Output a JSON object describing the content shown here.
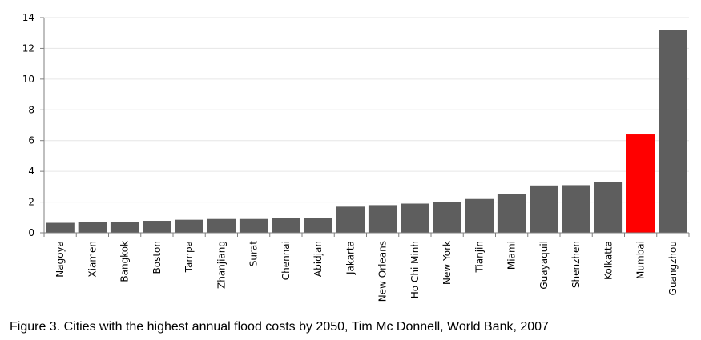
{
  "figure": {
    "caption": "Figure 3. Cities with the highest annual flood costs by 2050, Tim Mc Donnell, World Bank, 2007"
  },
  "chart_data": {
    "type": "bar",
    "title": "",
    "xlabel": "",
    "ylabel": "",
    "ylim": [
      0,
      14
    ],
    "yticks": [
      0,
      2,
      4,
      6,
      8,
      10,
      12,
      14
    ],
    "grid": true,
    "categories": [
      "Nagoya",
      "Xiamen",
      "Bangkok",
      "Boston",
      "Tampa",
      "Zhanjiang",
      "Surat",
      "Chennai",
      "Abidjan",
      "Jakarta",
      "New Orleans",
      "Ho Chi Minh",
      "New York",
      "Tianjin",
      "Miami",
      "Guayaquil",
      "Shenzhen",
      "Kolkatta",
      "Mumbai",
      "Guangzhou"
    ],
    "values": [
      0.65,
      0.72,
      0.72,
      0.78,
      0.85,
      0.9,
      0.9,
      0.95,
      0.98,
      1.7,
      1.8,
      1.9,
      1.98,
      2.2,
      2.5,
      3.08,
      3.1,
      3.28,
      6.4,
      13.2
    ],
    "colors": {
      "default": "#5e5e5e",
      "highlight": "#ff0000",
      "grid": "#e6e6e6",
      "axis": "#7f7f7f"
    },
    "highlight_category": "Mumbai"
  }
}
